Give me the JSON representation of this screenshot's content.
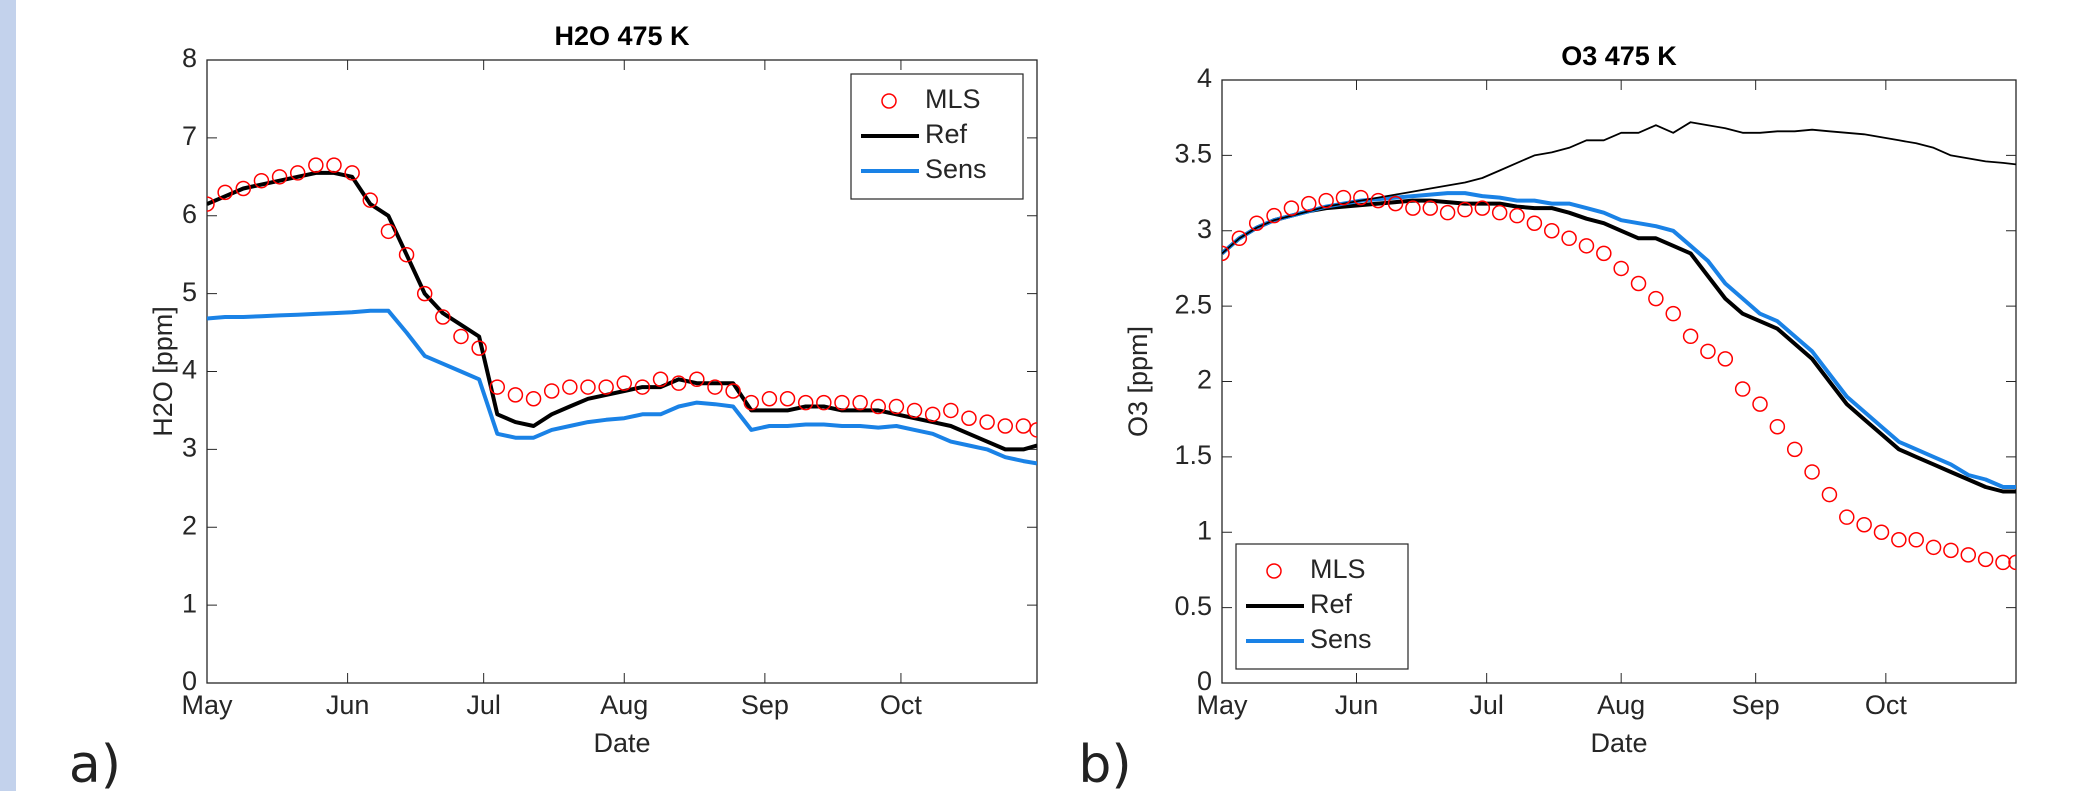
{
  "chart_data": [
    {
      "type": "line",
      "panel": "a)",
      "title": "H2O 475 K",
      "xlabel": "Date",
      "ylabel": "H2O [ppm]",
      "legend": "upper right",
      "grid": false,
      "xlim": [
        0,
        183
      ],
      "xticks": [
        {
          "value": 0,
          "label": "May"
        },
        {
          "value": 31,
          "label": "Jun"
        },
        {
          "value": 61,
          "label": "Jul"
        },
        {
          "value": 92,
          "label": "Aug"
        },
        {
          "value": 123,
          "label": "Sep"
        },
        {
          "value": 153,
          "label": "Oct"
        }
      ],
      "ylim": [
        0,
        8
      ],
      "yticks": [
        0,
        1,
        2,
        3,
        4,
        5,
        6,
        7,
        8
      ],
      "x": [
        0,
        4,
        8,
        12,
        16,
        20,
        24,
        28,
        32,
        36,
        40,
        44,
        48,
        52,
        56,
        60,
        64,
        68,
        72,
        76,
        80,
        84,
        88,
        92,
        96,
        100,
        104,
        108,
        112,
        116,
        120,
        124,
        128,
        132,
        136,
        140,
        144,
        148,
        152,
        156,
        160,
        164,
        168,
        172,
        176,
        180,
        183
      ],
      "series": [
        {
          "name": "MLS",
          "color": "#ff0000",
          "marker": "circle",
          "values": [
            6.15,
            6.3,
            6.35,
            6.45,
            6.5,
            6.55,
            6.65,
            6.65,
            6.55,
            6.2,
            5.8,
            5.5,
            5.0,
            4.7,
            4.45,
            4.3,
            3.8,
            3.7,
            3.65,
            3.75,
            3.8,
            3.8,
            3.8,
            3.85,
            3.8,
            3.9,
            3.85,
            3.9,
            3.8,
            3.75,
            3.6,
            3.65,
            3.65,
            3.6,
            3.6,
            3.6,
            3.6,
            3.55,
            3.55,
            3.5,
            3.45,
            3.5,
            3.4,
            3.35,
            3.3,
            3.3,
            3.25
          ]
        },
        {
          "name": "Ref",
          "color": "#000000",
          "line_width": 4,
          "values": [
            6.15,
            6.25,
            6.35,
            6.4,
            6.45,
            6.5,
            6.55,
            6.55,
            6.5,
            6.15,
            6.0,
            5.5,
            5.0,
            4.75,
            4.6,
            4.45,
            3.45,
            3.35,
            3.3,
            3.45,
            3.55,
            3.65,
            3.7,
            3.75,
            3.8,
            3.8,
            3.9,
            3.85,
            3.85,
            3.85,
            3.5,
            3.5,
            3.5,
            3.55,
            3.55,
            3.5,
            3.5,
            3.5,
            3.45,
            3.4,
            3.35,
            3.3,
            3.2,
            3.1,
            3.0,
            3.0,
            3.05
          ]
        },
        {
          "name": "Sens",
          "color": "#1a82e6",
          "line_width": 4,
          "values": [
            4.68,
            4.7,
            4.7,
            4.71,
            4.72,
            4.73,
            4.74,
            4.75,
            4.76,
            4.78,
            4.78,
            4.5,
            4.2,
            4.1,
            4.0,
            3.9,
            3.2,
            3.15,
            3.15,
            3.25,
            3.3,
            3.35,
            3.38,
            3.4,
            3.45,
            3.45,
            3.55,
            3.6,
            3.58,
            3.55,
            3.25,
            3.3,
            3.3,
            3.32,
            3.32,
            3.3,
            3.3,
            3.28,
            3.3,
            3.25,
            3.2,
            3.1,
            3.05,
            3.0,
            2.9,
            2.85,
            2.82
          ]
        }
      ]
    },
    {
      "type": "line",
      "panel": "b)",
      "title": "O3 475 K",
      "xlabel": "Date",
      "ylabel": "O3 [ppm]",
      "legend": "lower left",
      "grid": false,
      "xlim": [
        0,
        183
      ],
      "xticks": [
        {
          "value": 0,
          "label": "May"
        },
        {
          "value": 31,
          "label": "Jun"
        },
        {
          "value": 61,
          "label": "Jul"
        },
        {
          "value": 92,
          "label": "Aug"
        },
        {
          "value": 123,
          "label": "Sep"
        },
        {
          "value": 153,
          "label": "Oct"
        }
      ],
      "ylim": [
        0,
        4
      ],
      "yticks": [
        0,
        0.5,
        1,
        1.5,
        2,
        2.5,
        3,
        3.5,
        4
      ],
      "x": [
        0,
        4,
        8,
        12,
        16,
        20,
        24,
        28,
        32,
        36,
        40,
        44,
        48,
        52,
        56,
        60,
        64,
        68,
        72,
        76,
        80,
        84,
        88,
        92,
        96,
        100,
        104,
        108,
        112,
        116,
        120,
        124,
        128,
        132,
        136,
        140,
        144,
        148,
        152,
        156,
        160,
        164,
        168,
        172,
        176,
        180,
        183
      ],
      "series": [
        {
          "name": "MLS",
          "color": "#ff0000",
          "marker": "circle",
          "values": [
            2.85,
            2.95,
            3.05,
            3.1,
            3.15,
            3.18,
            3.2,
            3.22,
            3.22,
            3.2,
            3.18,
            3.15,
            3.15,
            3.12,
            3.14,
            3.15,
            3.12,
            3.1,
            3.05,
            3.0,
            2.95,
            2.9,
            2.85,
            2.75,
            2.65,
            2.55,
            2.45,
            2.3,
            2.2,
            2.15,
            1.95,
            1.85,
            1.7,
            1.55,
            1.4,
            1.25,
            1.1,
            1.05,
            1.0,
            0.95,
            0.95,
            0.9,
            0.88,
            0.85,
            0.82,
            0.8,
            0.8
          ]
        },
        {
          "name": "Ref",
          "color": "#000000",
          "line_width": 4,
          "values": [
            2.85,
            2.95,
            3.02,
            3.07,
            3.1,
            3.13,
            3.15,
            3.16,
            3.17,
            3.18,
            3.19,
            3.2,
            3.2,
            3.19,
            3.18,
            3.18,
            3.18,
            3.16,
            3.15,
            3.15,
            3.12,
            3.08,
            3.05,
            3.0,
            2.95,
            2.95,
            2.9,
            2.85,
            2.7,
            2.55,
            2.45,
            2.4,
            2.35,
            2.25,
            2.15,
            2.0,
            1.85,
            1.75,
            1.65,
            1.55,
            1.5,
            1.45,
            1.4,
            1.35,
            1.3,
            1.27,
            1.27
          ]
        },
        {
          "name": "Sens",
          "color": "#1a82e6",
          "line_width": 4,
          "values": [
            2.85,
            2.95,
            3.02,
            3.07,
            3.1,
            3.13,
            3.16,
            3.18,
            3.2,
            3.21,
            3.22,
            3.23,
            3.24,
            3.25,
            3.25,
            3.23,
            3.22,
            3.2,
            3.2,
            3.18,
            3.18,
            3.15,
            3.12,
            3.07,
            3.05,
            3.03,
            3.0,
            2.9,
            2.8,
            2.65,
            2.55,
            2.45,
            2.4,
            2.3,
            2.2,
            2.05,
            1.9,
            1.8,
            1.7,
            1.6,
            1.55,
            1.5,
            1.45,
            1.38,
            1.35,
            1.3,
            1.3
          ]
        },
        {
          "color": "#000000",
          "line_width": 1.8,
          "values": [
            2.85,
            2.95,
            3.02,
            3.07,
            3.1,
            3.13,
            3.16,
            3.18,
            3.2,
            3.22,
            3.24,
            3.26,
            3.28,
            3.3,
            3.32,
            3.35,
            3.4,
            3.45,
            3.5,
            3.52,
            3.55,
            3.6,
            3.6,
            3.65,
            3.65,
            3.7,
            3.65,
            3.72,
            3.7,
            3.68,
            3.65,
            3.65,
            3.66,
            3.66,
            3.67,
            3.66,
            3.65,
            3.64,
            3.62,
            3.6,
            3.58,
            3.55,
            3.5,
            3.48,
            3.46,
            3.45,
            3.44
          ]
        }
      ]
    }
  ]
}
